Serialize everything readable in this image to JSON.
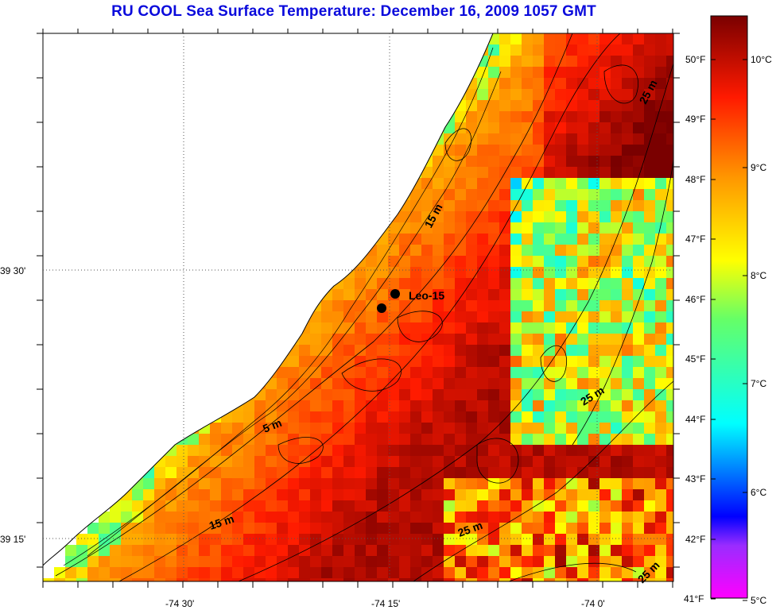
{
  "title": "RU COOL  Sea Surface Temperature:  December 16, 2009 1057 GMT",
  "axes": {
    "x_ticks": [
      "-74 30'",
      "-74 15'",
      "-74 0'"
    ],
    "y_ticks": [
      "39 30'",
      "39 15'"
    ]
  },
  "colorbar": {
    "fahrenheit_labels": [
      "50°F",
      "49°F",
      "48°F",
      "47°F",
      "46°F",
      "45°F",
      "44°F",
      "43°F",
      "42°F",
      "41°F"
    ],
    "celsius_labels": [
      "10°C",
      "9°C",
      "8°C",
      "7°C",
      "6°C",
      "5°C"
    ],
    "min_c": 5,
    "max_c": 10.5
  },
  "depth_contours": [
    "25 m",
    "15 m",
    "5 m",
    "25 m",
    "15 m",
    "25 m",
    "25 m"
  ],
  "station": {
    "label": "Leo-15"
  },
  "colors": {
    "title": "#0a0adc",
    "land": "#ffffff",
    "coastline": "#000000"
  }
}
